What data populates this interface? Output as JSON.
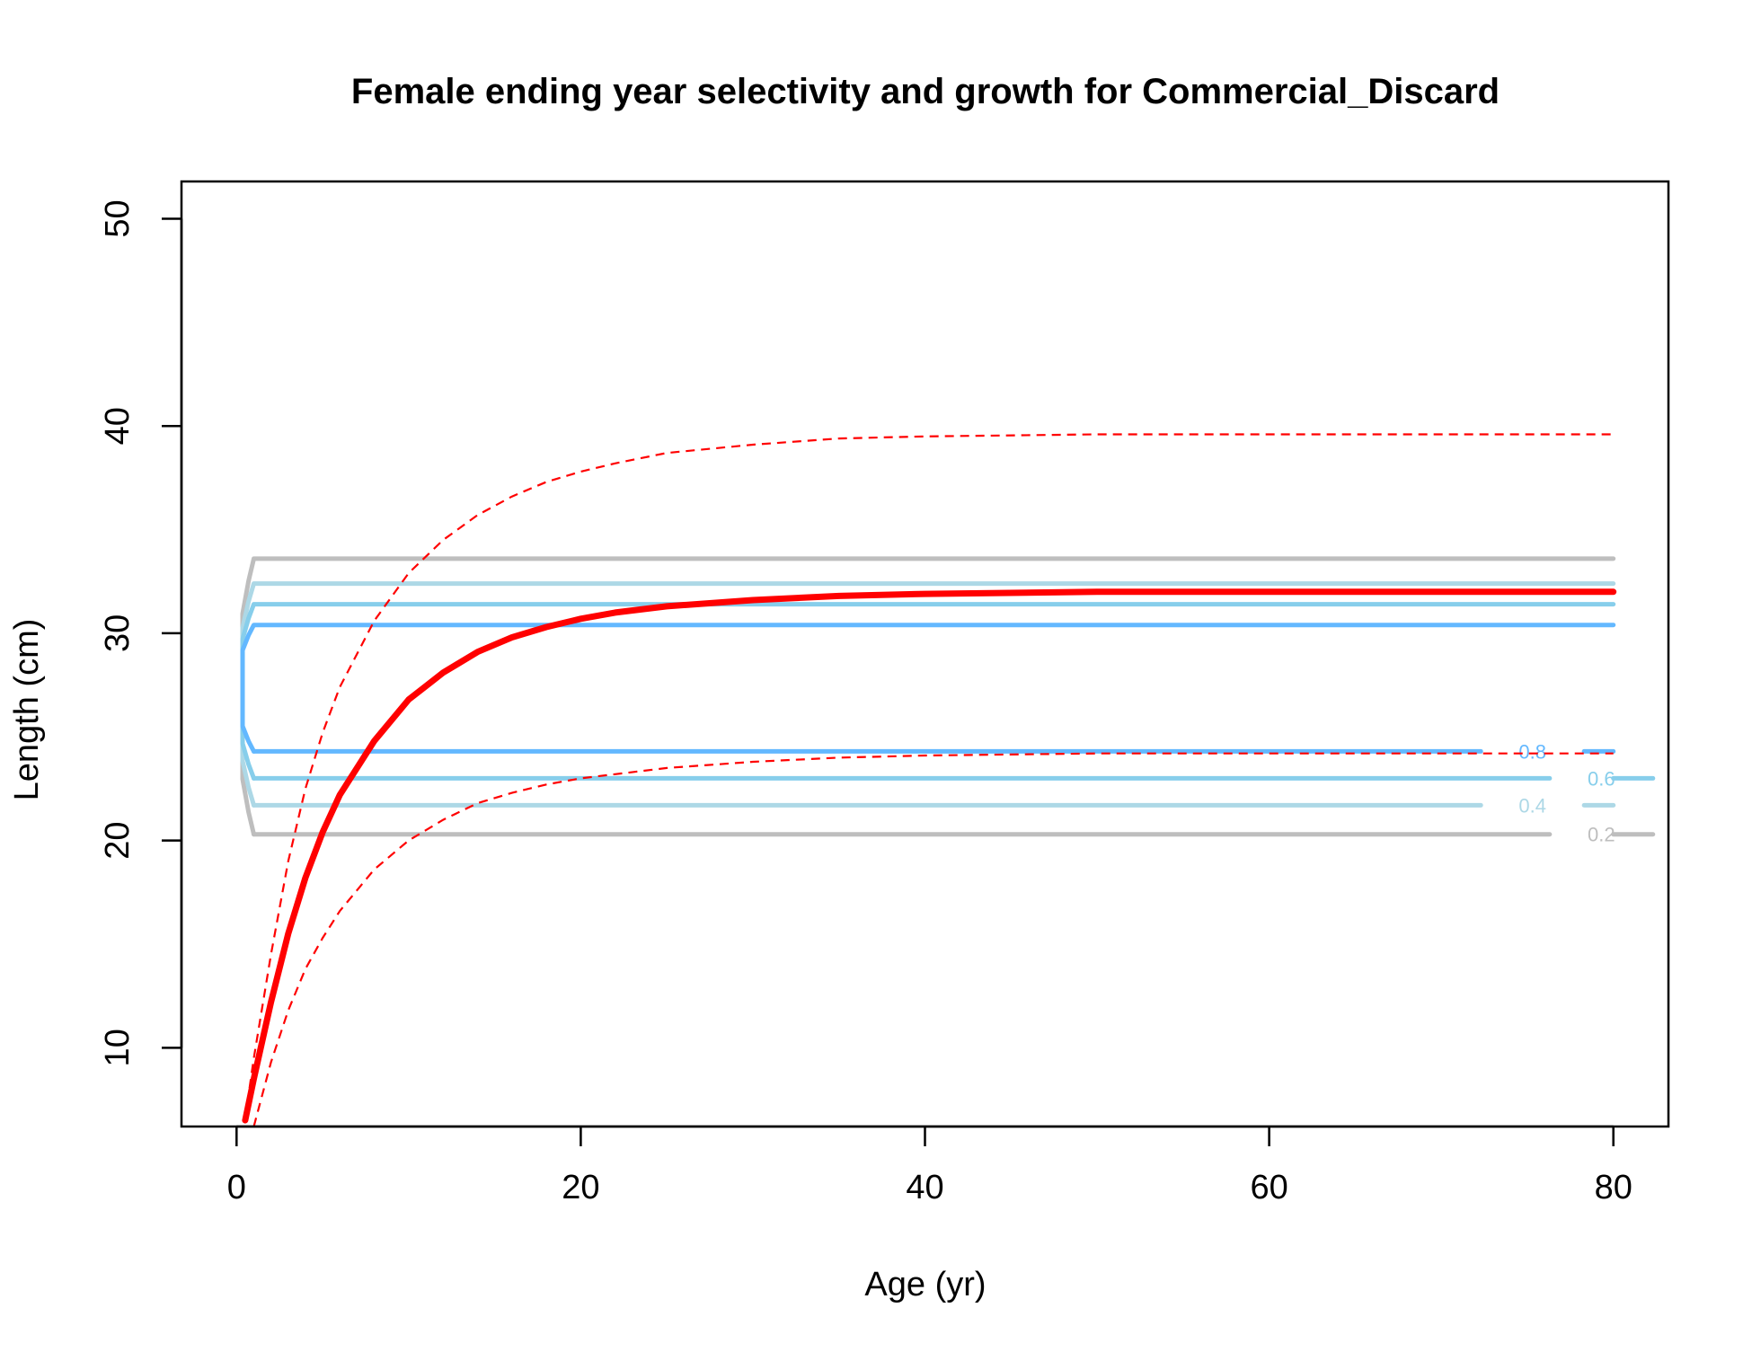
{
  "chart_data": {
    "type": "line",
    "title": "Female ending year selectivity and growth for Commercial_Discard",
    "xlabel": "Age (yr)",
    "ylabel": "Length (cm)",
    "xlim": [
      -3.2,
      83.2
    ],
    "ylim": [
      6.2,
      51.8
    ],
    "x_ticks": [
      0,
      20,
      40,
      60,
      80
    ],
    "y_ticks": [
      10,
      20,
      30,
      40,
      50
    ],
    "grid": false,
    "legend": "none",
    "growth": {
      "color": "#ff0000",
      "mean_x": [
        0.5,
        1,
        2,
        3,
        4,
        5,
        6,
        8,
        10,
        12,
        14,
        16,
        18,
        20,
        22,
        25,
        30,
        35,
        40,
        50,
        60,
        70,
        80
      ],
      "mean_y": [
        6.5,
        8.5,
        12.2,
        15.5,
        18.2,
        20.4,
        22.2,
        24.8,
        26.8,
        28.1,
        29.1,
        29.8,
        30.3,
        30.7,
        31.0,
        31.3,
        31.6,
        31.8,
        31.9,
        32.0,
        32.0,
        32.0,
        32.0
      ],
      "upper_x": [
        0.5,
        1,
        2,
        3,
        4,
        5,
        6,
        8,
        10,
        12,
        14,
        16,
        18,
        20,
        22,
        25,
        30,
        35,
        40,
        50,
        60,
        70,
        80
      ],
      "upper_y": [
        6.6,
        9.5,
        14.5,
        19.0,
        22.5,
        25.2,
        27.4,
        30.6,
        32.9,
        34.5,
        35.7,
        36.6,
        37.3,
        37.8,
        38.2,
        38.7,
        39.1,
        39.4,
        39.5,
        39.6,
        39.6,
        39.6,
        39.6
      ],
      "lower_x": [
        1,
        2,
        3,
        4,
        5,
        6,
        8,
        10,
        12,
        14,
        16,
        18,
        20,
        22,
        25,
        30,
        35,
        40,
        50,
        60,
        70,
        80
      ],
      "lower_y": [
        6.2,
        9.3,
        11.8,
        13.8,
        15.3,
        16.6,
        18.6,
        20.0,
        21.0,
        21.8,
        22.3,
        22.7,
        23.0,
        23.2,
        23.5,
        23.8,
        24.0,
        24.1,
        24.2,
        24.2,
        24.2,
        24.2
      ]
    },
    "contours": [
      {
        "level": "0.2",
        "color": "#bebebe",
        "y_low": 20.3,
        "y_high": 33.6,
        "label_x": 79.3
      },
      {
        "level": "0.4",
        "color": "#add8e6",
        "y_low": 21.7,
        "y_high": 32.4,
        "label_x": 75.3
      },
      {
        "level": "0.6",
        "color": "#87ceeb",
        "y_low": 23.0,
        "y_high": 31.4,
        "label_x": 79.3
      },
      {
        "level": "0.8",
        "color": "#63b8ff",
        "y_low": 24.3,
        "y_high": 30.4,
        "label_x": 75.3
      }
    ]
  }
}
